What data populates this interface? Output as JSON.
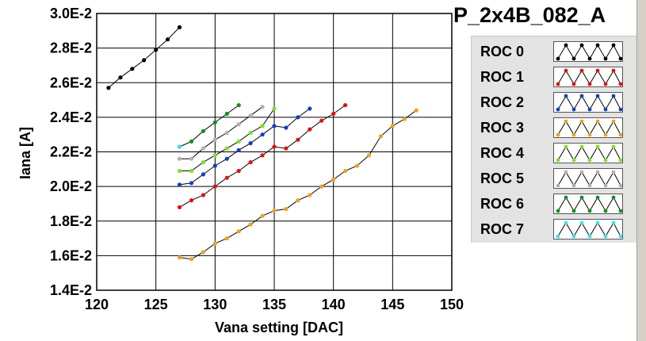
{
  "title": "P_2x4B_082_A",
  "chart_data": {
    "type": "line",
    "xlabel": "Vana setting [DAC]",
    "ylabel": "Iana [A]",
    "xlim": [
      120,
      150
    ],
    "ylim": [
      0.014,
      0.03
    ],
    "xticks": [
      120,
      125,
      130,
      135,
      140,
      145,
      150
    ],
    "yticks": [
      {
        "v": 0.014,
        "label": "1.4E-2"
      },
      {
        "v": 0.016,
        "label": "1.6E-2"
      },
      {
        "v": 0.018,
        "label": "1.8E-2"
      },
      {
        "v": 0.02,
        "label": "2.0E-2"
      },
      {
        "v": 0.022,
        "label": "2.2E-2"
      },
      {
        "v": 0.024,
        "label": "2.4E-2"
      },
      {
        "v": 0.026,
        "label": "2.6E-2"
      },
      {
        "v": 0.028,
        "label": "2.8E-2"
      },
      {
        "v": 0.03,
        "label": "3.0E-2"
      }
    ],
    "grid": true,
    "legend": "right",
    "series": [
      {
        "name": "ROC 0",
        "color": "#000000",
        "x": [
          121,
          122,
          123,
          124,
          125,
          126,
          127
        ],
        "y": [
          0.0257,
          0.0263,
          0.0268,
          0.0273,
          0.0279,
          0.0285,
          0.0292
        ]
      },
      {
        "name": "ROC 1",
        "color": "#e01010",
        "x": [
          127,
          128,
          129,
          130,
          131,
          132,
          133,
          134,
          135,
          136,
          137,
          138,
          139,
          140,
          141
        ],
        "y": [
          0.0188,
          0.0192,
          0.0195,
          0.02,
          0.0205,
          0.0209,
          0.0214,
          0.0218,
          0.0223,
          0.0222,
          0.0227,
          0.0233,
          0.0238,
          0.0242,
          0.0247
        ]
      },
      {
        "name": "ROC 2",
        "color": "#1040c0",
        "x": [
          127,
          128,
          129,
          130,
          131,
          132,
          133,
          134,
          135,
          136,
          137,
          138
        ],
        "y": [
          0.0201,
          0.0202,
          0.0207,
          0.0212,
          0.0216,
          0.0221,
          0.0225,
          0.023,
          0.0235,
          0.0234,
          0.024,
          0.0245
        ]
      },
      {
        "name": "ROC 3",
        "color": "#f0a020",
        "x": [
          127,
          128,
          129,
          130,
          131,
          132,
          133,
          134,
          135,
          136,
          137,
          138,
          139,
          140,
          141,
          142,
          143,
          144,
          145,
          146,
          147
        ],
        "y": [
          0.0159,
          0.0158,
          0.0162,
          0.0167,
          0.017,
          0.0174,
          0.0178,
          0.0183,
          0.0186,
          0.0187,
          0.0192,
          0.0195,
          0.02,
          0.0204,
          0.0209,
          0.0212,
          0.0218,
          0.0229,
          0.0235,
          0.0239,
          0.0244
        ]
      },
      {
        "name": "ROC 4",
        "color": "#80e020",
        "x": [
          127,
          128,
          129,
          130,
          131,
          132,
          133,
          134,
          135
        ],
        "y": [
          0.0209,
          0.0209,
          0.0214,
          0.0218,
          0.0222,
          0.0226,
          0.0231,
          0.0235,
          0.0245
        ]
      },
      {
        "name": "ROC 5",
        "color": "#b0b0b0",
        "x": [
          127,
          128,
          129,
          130,
          131,
          132,
          133,
          134
        ],
        "y": [
          0.0216,
          0.0216,
          0.0222,
          0.0227,
          0.0231,
          0.0236,
          0.0241,
          0.0246
        ]
      },
      {
        "name": "ROC 6",
        "color": "#109020",
        "x": [
          127,
          128,
          129,
          130,
          131,
          132
        ],
        "y": [
          0.0223,
          0.0226,
          0.0232,
          0.0237,
          0.0242,
          0.0247
        ]
      },
      {
        "name": "ROC 7",
        "color": "#40e0e0",
        "x": [
          127
        ],
        "y": [
          0.0223
        ]
      }
    ]
  }
}
